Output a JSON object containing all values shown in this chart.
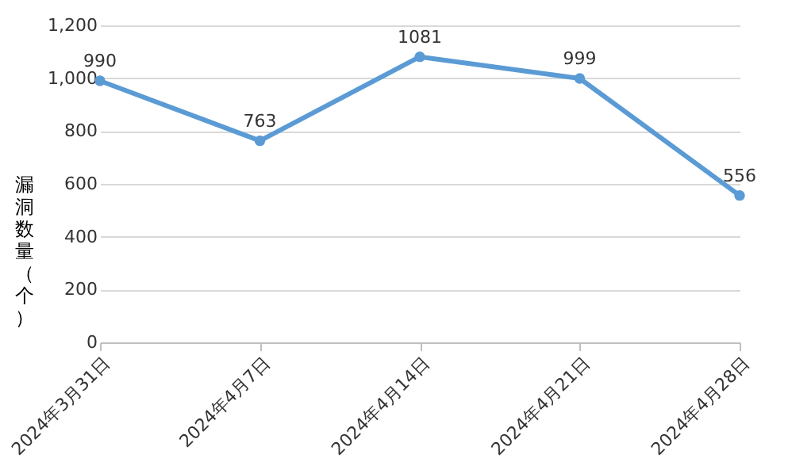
{
  "chart_data": {
    "type": "line",
    "categories": [
      "2024年3月31日",
      "2024年4月7日",
      "2024年4月14日",
      "2024年4月21日",
      "2024年4月28日"
    ],
    "series": [
      {
        "color": "#5b9bd5",
        "values": [
          990,
          763,
          1081,
          999,
          556
        ]
      }
    ],
    "ylabel": "漏洞数量（个）",
    "ylim": [
      0,
      1200
    ],
    "yticks": [
      0,
      200,
      400,
      600,
      800,
      {
        "value": 1000,
        "label": "1,000"
      },
      {
        "value": 1200,
        "label": "1,200"
      }
    ],
    "grid": "y",
    "marker": "circle",
    "line_style": "solid",
    "data_labels": true,
    "legend": false
  }
}
